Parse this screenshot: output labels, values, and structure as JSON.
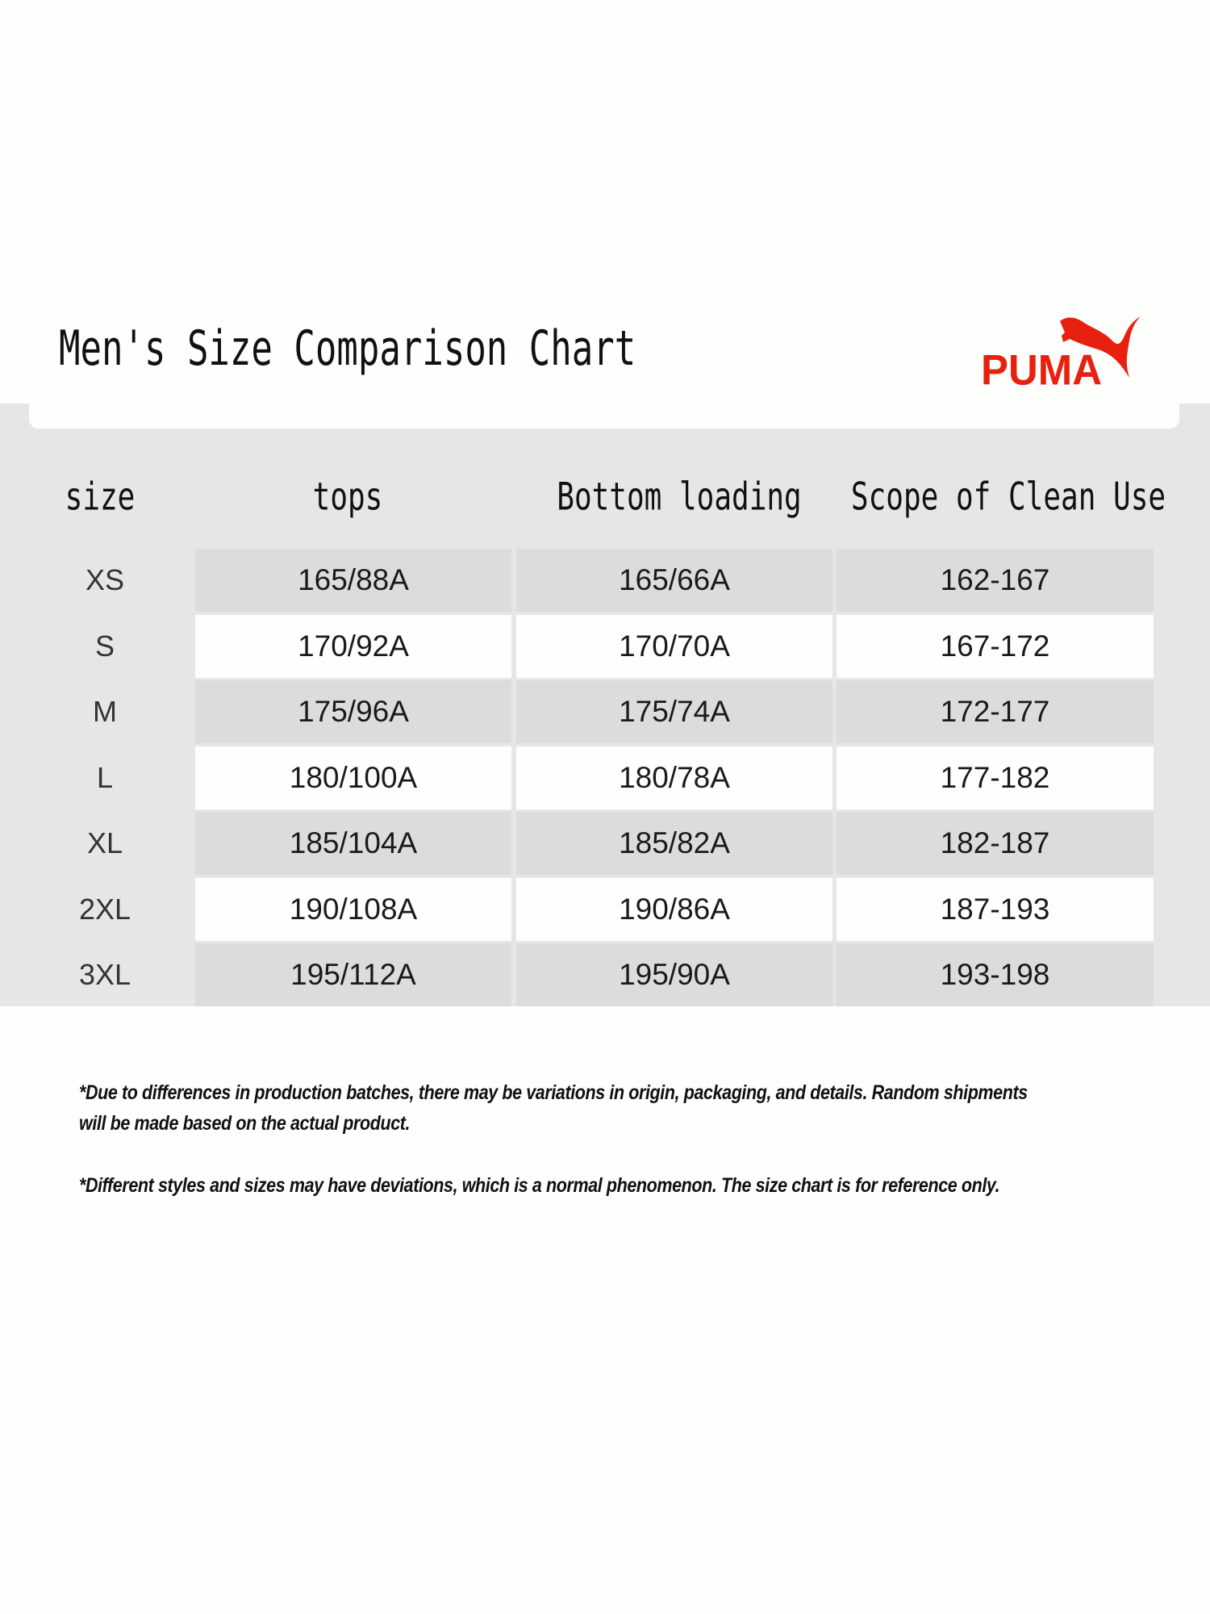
{
  "header": {
    "title": "Men's Size Comparison Chart",
    "logo_text": "PUMA",
    "logo_color": "#e8200f"
  },
  "table": {
    "columns": [
      "size",
      "tops",
      "Bottom loading",
      "Scope of Clean Use"
    ],
    "rows": [
      {
        "size": "XS",
        "tops": "165/88A",
        "bottom": "165/66A",
        "scope": "162-167"
      },
      {
        "size": "S",
        "tops": "170/92A",
        "bottom": "170/70A",
        "scope": "167-172"
      },
      {
        "size": "M",
        "tops": "175/96A",
        "bottom": "175/74A",
        "scope": "172-177"
      },
      {
        "size": "L",
        "tops": "180/100A",
        "bottom": "180/78A",
        "scope": "177-182"
      },
      {
        "size": "XL",
        "tops": "185/104A",
        "bottom": "185/82A",
        "scope": "182-187"
      },
      {
        "size": "2XL",
        "tops": "190/108A",
        "bottom": "190/86A",
        "scope": "187-193"
      },
      {
        "size": "3XL",
        "tops": "195/112A",
        "bottom": "195/90A",
        "scope": "193-198"
      }
    ]
  },
  "notes": [
    "*Due to differences in production batches, there may be variations in origin, packaging, and details. Random shipments",
    "will be made based on the actual product.",
    "*Different styles and sizes may have deviations, which is a normal phenomenon. The size chart is for reference only."
  ]
}
